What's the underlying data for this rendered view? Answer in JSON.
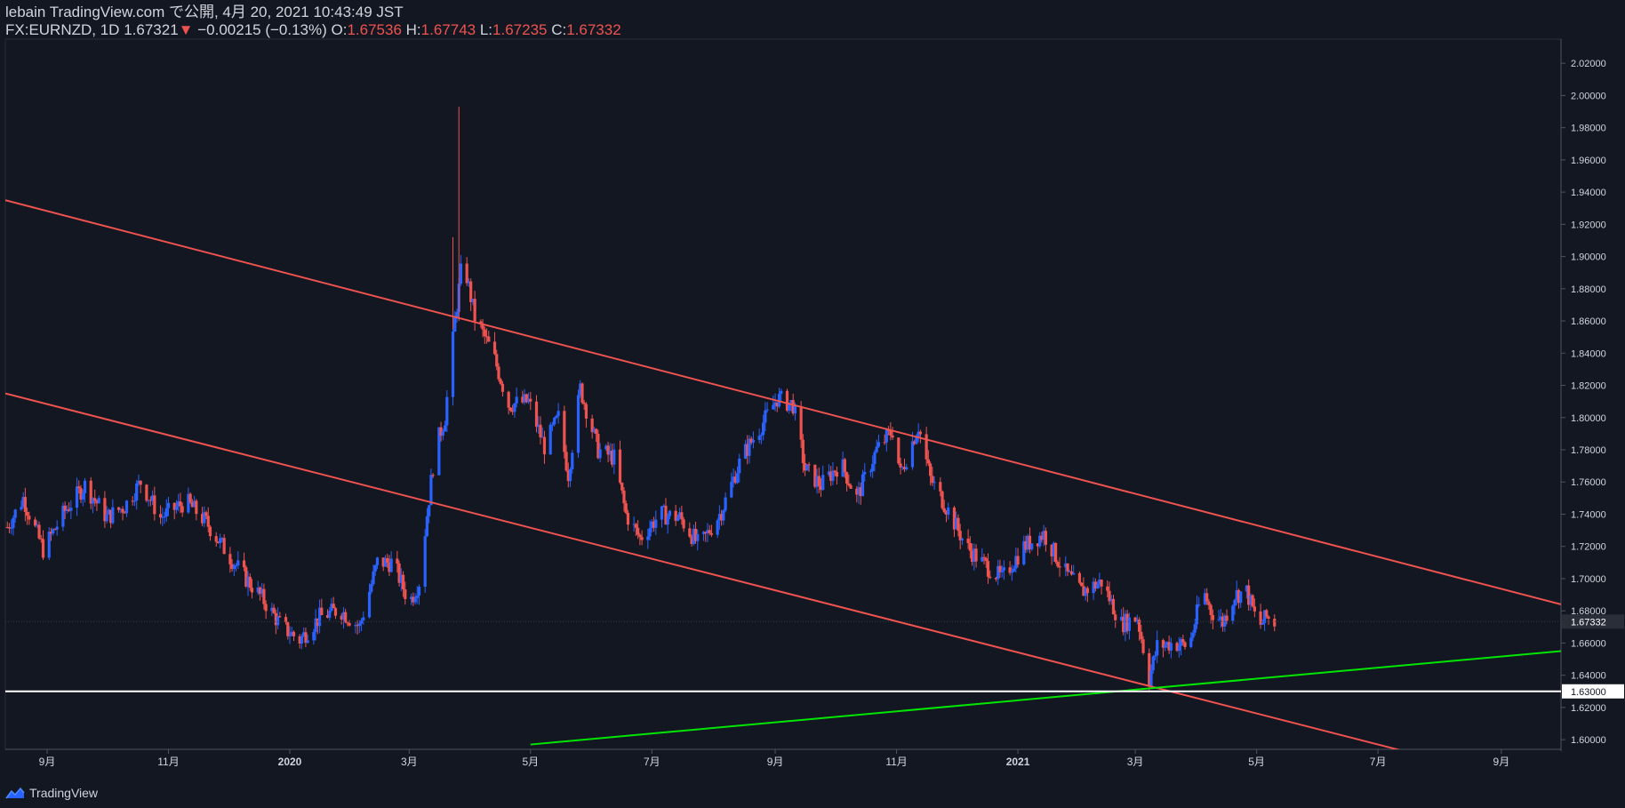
{
  "header": {
    "line1": "lebain TradingView.com で公開, 4月 20, 2021 10:43:49 JST",
    "symbol": "FX:EURNZD, 1D",
    "last": "1.67321",
    "arrow": "▼",
    "change": "−0.00215 (−0.13%)",
    "o_label": "O:",
    "o_value": "1.67536",
    "h_label": "H:",
    "h_value": "1.67743",
    "l_label": "L:",
    "l_value": "1.67235",
    "c_label": "C:",
    "c_value": "1.67332"
  },
  "footer": {
    "brand": "TradingView",
    "logo_icon": "tradingview-logo-icon"
  },
  "colors": {
    "background": "#131722",
    "up": "#2962ff",
    "down": "#ef5350",
    "channel": "#ef5350",
    "support": "#00e600",
    "horizontal": "#ffffff",
    "text": "#d1d4dc"
  },
  "chart_data": {
    "type": "candlestick",
    "y_ticks": [
      "2.02000",
      "2.00000",
      "1.98000",
      "1.96000",
      "1.94000",
      "1.92000",
      "1.90000",
      "1.88000",
      "1.86000",
      "1.84000",
      "1.82000",
      "1.80000",
      "1.78000",
      "1.76000",
      "1.74000",
      "1.72000",
      "1.70000",
      "1.68000",
      "1.66000",
      "1.64000",
      "1.62000",
      "1.60000"
    ],
    "x_ticks": [
      {
        "label": "9月",
        "date": "2019-09-01"
      },
      {
        "label": "11月",
        "date": "2019-11-01"
      },
      {
        "label": "2020",
        "date": "2020-01-01"
      },
      {
        "label": "3月",
        "date": "2020-03-01"
      },
      {
        "label": "5月",
        "date": "2020-05-01"
      },
      {
        "label": "7月",
        "date": "2020-07-01"
      },
      {
        "label": "9月",
        "date": "2020-09-01"
      },
      {
        "label": "11月",
        "date": "2020-11-01"
      },
      {
        "label": "2021",
        "date": "2021-01-01"
      },
      {
        "label": "3月",
        "date": "2021-03-01"
      },
      {
        "label": "5月",
        "date": "2021-05-01"
      },
      {
        "label": "7月",
        "date": "2021-07-01"
      },
      {
        "label": "9月",
        "date": "2021-09-01"
      }
    ],
    "ylim": [
      1.594,
      2.035
    ],
    "xlim": [
      "2019-08-11",
      "2021-10-01"
    ],
    "price_marker": "1.67332",
    "horizontal_line": {
      "value": 1.63,
      "label": "1.63000"
    },
    "lines": [
      {
        "name": "upper channel",
        "color": "#ef5350",
        "from": {
          "date": "2019-08-11",
          "value": 1.935
        },
        "to": {
          "date": "2021-10-01",
          "value": 1.684
        }
      },
      {
        "name": "lower channel",
        "color": "#ef5350",
        "from": {
          "date": "2019-08-11",
          "value": 1.815
        },
        "to": {
          "date": "2021-07-01",
          "value": 1.597
        }
      },
      {
        "name": "support",
        "color": "#00e600",
        "from": {
          "date": "2020-05-01",
          "value": 1.597
        },
        "to": {
          "date": "2021-10-01",
          "value": 1.655
        }
      }
    ],
    "price_path": [
      [
        "2019-08-12",
        1.732
      ],
      [
        "2019-08-20",
        1.75
      ],
      [
        "2019-08-30",
        1.718
      ],
      [
        "2019-09-10",
        1.742
      ],
      [
        "2019-09-20",
        1.758
      ],
      [
        "2019-10-01",
        1.738
      ],
      [
        "2019-10-10",
        1.745
      ],
      [
        "2019-10-18",
        1.76
      ],
      [
        "2019-10-28",
        1.738
      ],
      [
        "2019-11-10",
        1.748
      ],
      [
        "2019-11-20",
        1.735
      ],
      [
        "2019-12-01",
        1.715
      ],
      [
        "2019-12-10",
        1.7
      ],
      [
        "2019-12-18",
        1.688
      ],
      [
        "2019-12-28",
        1.67
      ],
      [
        "2020-01-06",
        1.662
      ],
      [
        "2020-01-16",
        1.676
      ],
      [
        "2020-01-26",
        1.681
      ],
      [
        "2020-02-05",
        1.67
      ],
      [
        "2020-02-14",
        1.71
      ],
      [
        "2020-02-22",
        1.71
      ],
      [
        "2020-03-01",
        1.685
      ],
      [
        "2020-03-06",
        1.698
      ],
      [
        "2020-03-10",
        1.74
      ],
      [
        "2020-03-14",
        1.78
      ],
      [
        "2020-03-19",
        1.8
      ],
      [
        "2020-03-24",
        1.86
      ],
      [
        "2020-03-28",
        1.9
      ],
      [
        "2020-04-03",
        1.862
      ],
      [
        "2020-04-12",
        1.84
      ],
      [
        "2020-04-20",
        1.808
      ],
      [
        "2020-04-30",
        1.81
      ],
      [
        "2020-05-08",
        1.782
      ],
      [
        "2020-05-15",
        1.8
      ],
      [
        "2020-05-20",
        1.765
      ],
      [
        "2020-05-26",
        1.818
      ],
      [
        "2020-06-04",
        1.78
      ],
      [
        "2020-06-12",
        1.775
      ],
      [
        "2020-06-18",
        1.74
      ],
      [
        "2020-06-25",
        1.725
      ],
      [
        "2020-07-05",
        1.74
      ],
      [
        "2020-07-15",
        1.738
      ],
      [
        "2020-07-25",
        1.72
      ],
      [
        "2020-08-05",
        1.742
      ],
      [
        "2020-08-15",
        1.775
      ],
      [
        "2020-08-25",
        1.795
      ],
      [
        "2020-09-02",
        1.812
      ],
      [
        "2020-09-10",
        1.808
      ],
      [
        "2020-09-16",
        1.768
      ],
      [
        "2020-09-24",
        1.758
      ],
      [
        "2020-10-04",
        1.772
      ],
      [
        "2020-10-12",
        1.75
      ],
      [
        "2020-10-22",
        1.78
      ],
      [
        "2020-10-30",
        1.792
      ],
      [
        "2020-11-03",
        1.765
      ],
      [
        "2020-11-12",
        1.795
      ],
      [
        "2020-11-18",
        1.762
      ],
      [
        "2020-11-28",
        1.74
      ],
      [
        "2020-12-06",
        1.72
      ],
      [
        "2020-12-14",
        1.71
      ],
      [
        "2020-12-24",
        1.7
      ],
      [
        "2021-01-04",
        1.72
      ],
      [
        "2021-01-14",
        1.728
      ],
      [
        "2021-01-24",
        1.705
      ],
      [
        "2021-02-02",
        1.692
      ],
      [
        "2021-02-12",
        1.698
      ],
      [
        "2021-02-22",
        1.672
      ],
      [
        "2021-03-02",
        1.676
      ],
      [
        "2021-03-08",
        1.638
      ],
      [
        "2021-03-12",
        1.658
      ],
      [
        "2021-03-20",
        1.66
      ],
      [
        "2021-03-28",
        1.658
      ],
      [
        "2021-04-04",
        1.693
      ],
      [
        "2021-04-08",
        1.68
      ],
      [
        "2021-04-14",
        1.673
      ],
      [
        "2021-04-20",
        1.69
      ],
      [
        "2021-04-26",
        1.692
      ],
      [
        "2021-05-02",
        1.67
      ],
      [
        "2021-05-06",
        1.676
      ],
      [
        "2021-05-10",
        1.673
      ]
    ],
    "special_wicks": [
      {
        "date": "2020-03-26",
        "high": 1.993,
        "low": 1.86
      },
      {
        "date": "2020-03-23",
        "high": 1.912,
        "low": 1.855
      },
      {
        "date": "2021-03-08",
        "high": 1.652,
        "low": 1.633
      }
    ]
  }
}
